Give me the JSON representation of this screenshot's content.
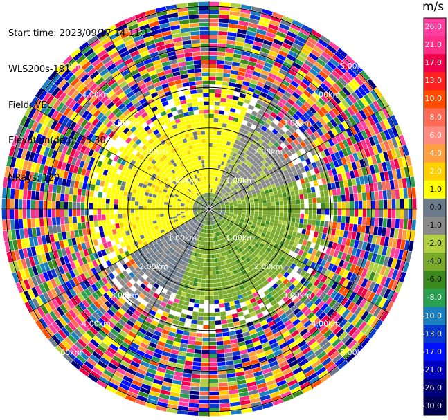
{
  "header": {
    "start_time": "Start time: 2023/09/17 14:11:12",
    "instrument": "WLS200s-181",
    "field": "Field: VEL",
    "elevation": "Elevation(deg): 35.30",
    "nrays": "NRays: 120"
  },
  "colorbar": {
    "title": "m/s",
    "ticks": [
      "26.0",
      "21.0",
      "17.0",
      "13.0",
      "10.0",
      "8.0",
      "6.0",
      "4.0",
      "2.0",
      "1.0",
      "0.0",
      "-1.0",
      "-2.0",
      "-4.0",
      "-6.0",
      "-8.0",
      "-10.0",
      "-13.0",
      "-17.0",
      "-21.0",
      "-26.0",
      "-30.0"
    ],
    "colors": [
      "#ff3fa0",
      "#ff2f88",
      "#f0004a",
      "#ff2020",
      "#ff4d00",
      "#ff6a55",
      "#ff8a80",
      "#ffa040",
      "#ffd000",
      "#ffff00",
      "#6b7b8b",
      "#8a8a8a",
      "#b0d040",
      "#7aaa2a",
      "#3a8a1e",
      "#28a050",
      "#1a80c0",
      "#0a3ad0",
      "#0010ff",
      "#0000c0",
      "#00007a",
      "#000050"
    ]
  },
  "range_rings": {
    "labels": [
      "1.00km",
      "2.00km",
      "3.00km",
      "4.00km",
      "5.00km"
    ]
  }
}
